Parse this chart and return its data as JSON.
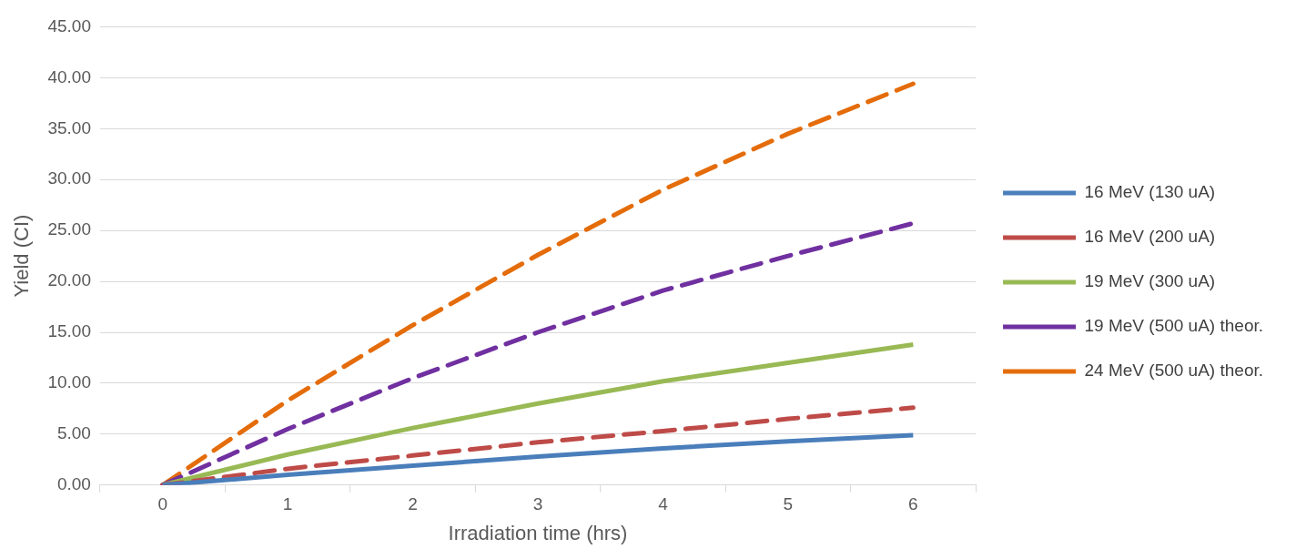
{
  "chart_data": {
    "type": "line",
    "xlabel": "Irradiation time (hrs)",
    "ylabel": "Yield (CI)",
    "categories": [
      "0",
      "1",
      "2",
      "3",
      "4",
      "5",
      "6"
    ],
    "series": [
      {
        "name": "16 MeV (130 uA)",
        "color": "#4a7ebb",
        "line_style": "solid",
        "values": [
          0,
          1.0,
          1.9,
          2.8,
          3.6,
          4.3,
          4.9
        ]
      },
      {
        "name": "16 MeV (200 uA)",
        "color": "#be4b48",
        "line_style": "dashed",
        "values": [
          0,
          1.6,
          2.9,
          4.2,
          5.3,
          6.5,
          7.6
        ]
      },
      {
        "name": "19 MeV (300 uA)",
        "color": "#98b954",
        "line_style": "solid",
        "values": [
          0,
          3.0,
          5.6,
          8.0,
          10.2,
          12.0,
          13.8
        ]
      },
      {
        "name": "19 MeV (500 uA) theor.",
        "color": "#7030a0",
        "line_style": "dashed",
        "values": [
          0,
          5.5,
          10.5,
          15.0,
          19.1,
          22.5,
          25.7
        ]
      },
      {
        "name": "24 MeV (500 uA) theor.",
        "color": "#e46c0a",
        "line_style": "dashed",
        "values": [
          0,
          8.3,
          15.7,
          22.6,
          29.0,
          34.5,
          39.4
        ]
      }
    ],
    "ylim": [
      0,
      45
    ],
    "yticks": [
      {
        "value": 0,
        "label": "0.00"
      },
      {
        "value": 5,
        "label": "5.00"
      },
      {
        "value": 10,
        "label": "10.00"
      },
      {
        "value": 15,
        "label": "15.00"
      },
      {
        "value": 20,
        "label": "20.00"
      },
      {
        "value": 25,
        "label": "25.00"
      },
      {
        "value": 30,
        "label": "30.00"
      },
      {
        "value": 35,
        "label": "35.00"
      },
      {
        "value": 40,
        "label": "40.00"
      },
      {
        "value": 45,
        "label": "45.00"
      }
    ],
    "grid": "y",
    "legend": "right",
    "marker": "none"
  }
}
